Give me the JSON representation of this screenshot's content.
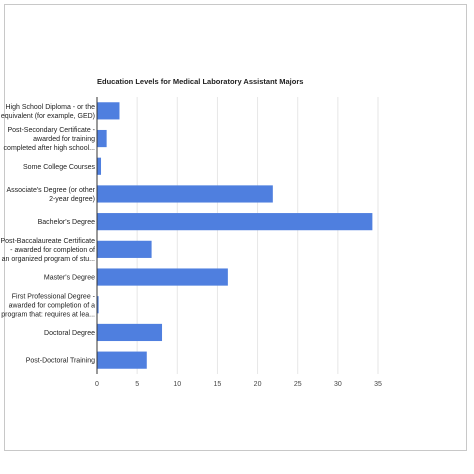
{
  "chart_data": {
    "type": "bar",
    "orientation": "horizontal",
    "title": "Education Levels for Medical Laboratory Assistant Majors",
    "xlabel": "",
    "ylabel": "",
    "xlim": [
      0,
      35
    ],
    "x_ticks": [
      "0",
      "5",
      "10",
      "15",
      "20",
      "25",
      "30",
      "35"
    ],
    "grid": true,
    "bar_color": "#4f7fdf",
    "categories": [
      [
        "High School Diploma - or the",
        "equivalent (for example, GED)"
      ],
      [
        "Post-Secondary Certificate -",
        "awarded for training",
        "completed after high school..."
      ],
      [
        "Some College Courses"
      ],
      [
        "Associate's Degree (or other",
        "2-year degree)"
      ],
      [
        "Bachelor's Degree"
      ],
      [
        "Post-Baccalaureate Certificate",
        "- awarded for completion of",
        "an organized program of stu..."
      ],
      [
        "Master's Degree"
      ],
      [
        "First Professional Degree -",
        "awarded for completion of a",
        "program that: requires at lea..."
      ],
      [
        "Doctoral Degree"
      ],
      [
        "Post-Doctoral Training"
      ]
    ],
    "values": [
      2.8,
      1.2,
      0.5,
      21.9,
      34.3,
      6.8,
      16.3,
      0.2,
      8.1,
      6.2
    ]
  }
}
